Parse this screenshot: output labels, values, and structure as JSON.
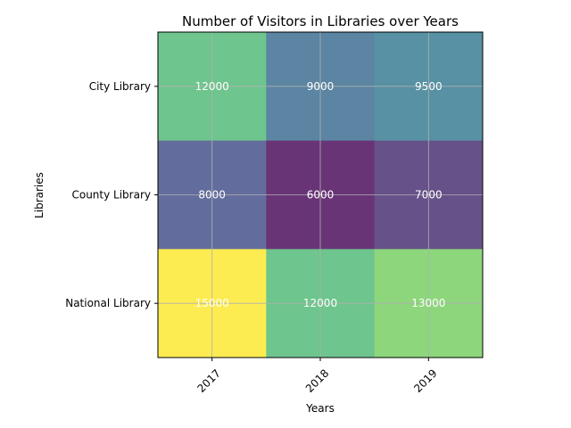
{
  "chart_data": {
    "type": "heatmap",
    "title": "Number of Visitors in Libraries over Years",
    "xlabel": "Years",
    "ylabel": "Libraries",
    "x_categories": [
      "2017",
      "2018",
      "2019"
    ],
    "y_categories": [
      "City Library",
      "County Library",
      "National Library"
    ],
    "values": [
      [
        12000,
        9000,
        9500
      ],
      [
        8000,
        6000,
        7000
      ],
      [
        15000,
        12000,
        13000
      ]
    ],
    "colormap": "viridis",
    "cell_alpha": 0.8,
    "grid": true,
    "x_tick_rotation_deg": 45,
    "value_label_color": "#ffffff"
  }
}
